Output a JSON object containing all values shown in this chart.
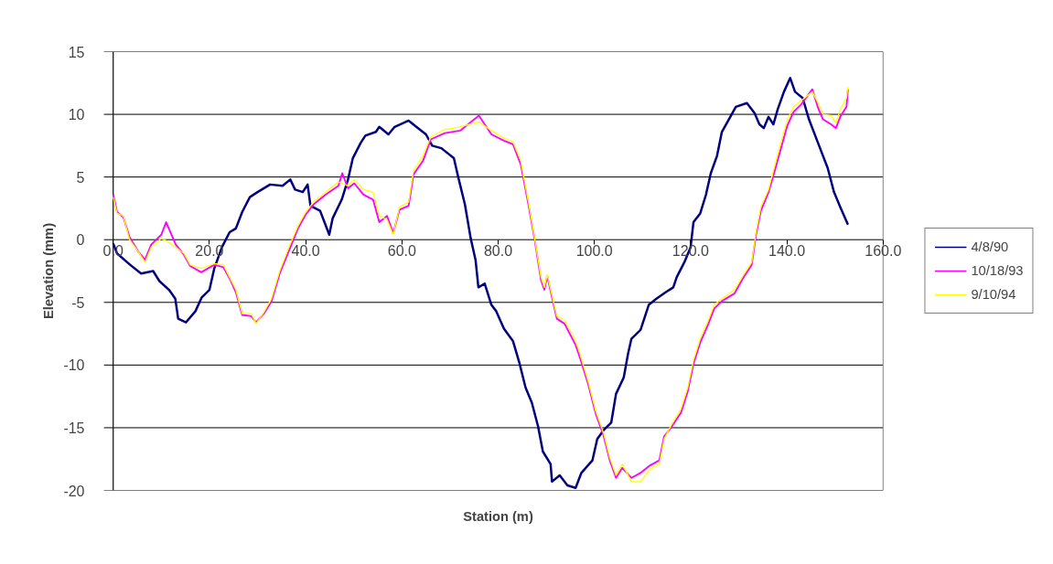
{
  "chart_data": {
    "type": "line",
    "xlabel": "Station (m)",
    "ylabel": "Elevation (mm)",
    "xlim": [
      0,
      160
    ],
    "ylim": [
      -20,
      15
    ],
    "xticks": [
      {
        "value": 0,
        "label": "0.0"
      },
      {
        "value": 20,
        "label": "20.0"
      },
      {
        "value": 40,
        "label": "40.0"
      },
      {
        "value": 60,
        "label": "60.0"
      },
      {
        "value": 80,
        "label": "80.0"
      },
      {
        "value": 100,
        "label": "100.0"
      },
      {
        "value": 120,
        "label": "120.0"
      },
      {
        "value": 140,
        "label": "140.0"
      },
      {
        "value": 160,
        "label": "160.0"
      }
    ],
    "yticks": [
      -20,
      -15,
      -10,
      -5,
      0,
      5,
      10,
      15
    ],
    "grid": "y",
    "legend": "right",
    "marker": "none",
    "line_style": "solid",
    "series": [
      {
        "name": "4/8/90",
        "color": "#000080",
        "x": [
          0,
          0.8,
          3.5,
          5.8,
          8.3,
          9.6,
          11.6,
          12.9,
          13.5,
          15.1,
          17.1,
          18.4,
          20.0,
          21.0,
          22.6,
          24.2,
          25.5,
          26.8,
          28.4,
          30.0,
          32.6,
          35.2,
          36.8,
          37.8,
          39.4,
          40.4,
          41.0,
          43.0,
          43.9,
          44.9,
          45.6,
          47.5,
          48.8,
          49.8,
          51.4,
          52.4,
          54.6,
          55.3,
          57.2,
          58.5,
          61.4,
          63.0,
          65.0,
          66.3,
          68.2,
          70.8,
          71.7,
          73.1,
          74.3,
          75.3,
          75.9,
          77.2,
          78.6,
          79.6,
          81.2,
          83.1,
          84.4,
          85.7,
          87.0,
          88.3,
          89.3,
          90.9,
          91.2,
          92.8,
          94.4,
          96.1,
          97.3,
          99.6,
          100.6,
          101.9,
          103.5,
          104.5,
          106.1,
          107.0,
          107.7,
          109.6,
          111.3,
          112.9,
          114.8,
          116.4,
          117.1,
          118.7,
          120.0,
          120.6,
          122.0,
          123.2,
          124.2,
          125.5,
          126.5,
          128.4,
          129.4,
          131.7,
          133.3,
          134.3,
          135.2,
          136.2,
          137.2,
          138.1,
          139.4,
          140.7,
          141.7,
          143.3,
          144.6,
          146.5,
          148.5,
          149.8,
          151.1,
          152.7
        ],
        "values": [
          -0.3,
          -1.1,
          -2.0,
          -2.7,
          -2.5,
          -3.3,
          -4.0,
          -4.7,
          -6.3,
          -6.6,
          -5.7,
          -4.6,
          -4.0,
          -2.3,
          -0.6,
          0.6,
          0.9,
          2.2,
          3.4,
          3.8,
          4.4,
          4.3,
          4.8,
          4.0,
          3.8,
          4.4,
          2.7,
          2.3,
          1.4,
          0.4,
          1.7,
          3.2,
          4.8,
          6.5,
          7.7,
          8.3,
          8.6,
          9.0,
          8.4,
          9.0,
          9.5,
          9.0,
          8.4,
          7.5,
          7.3,
          6.5,
          5.0,
          2.8,
          0.1,
          -1.6,
          -3.8,
          -3.5,
          -5.2,
          -5.7,
          -7.1,
          -8.1,
          -9.8,
          -11.8,
          -13.0,
          -14.9,
          -16.9,
          -17.9,
          -19.3,
          -18.8,
          -19.6,
          -19.8,
          -18.6,
          -17.6,
          -15.9,
          -15.2,
          -14.6,
          -12.3,
          -11.0,
          -9.1,
          -7.9,
          -7.2,
          -5.2,
          -4.7,
          -4.2,
          -3.8,
          -3.0,
          -1.8,
          -0.6,
          1.4,
          2.1,
          3.6,
          5.3,
          6.7,
          8.6,
          9.9,
          10.6,
          10.9,
          10.1,
          9.2,
          8.9,
          9.8,
          9.2,
          10.4,
          11.8,
          12.9,
          11.8,
          11.3,
          9.6,
          7.7,
          5.7,
          3.8,
          2.6,
          1.2
        ]
      },
      {
        "name": "10/18/93",
        "color": "#ff00ff",
        "x": [
          0,
          0.8,
          2.1,
          3.4,
          5.3,
          6.6,
          7.9,
          10.0,
          11.0,
          13.0,
          14.7,
          16.0,
          18.3,
          21.0,
          22.9,
          24.2,
          25.5,
          26.8,
          28.7,
          29.7,
          31.3,
          32.9,
          34.6,
          36.5,
          38.4,
          40.0,
          41.6,
          44.2,
          46.8,
          47.6,
          48.8,
          50.1,
          52.0,
          54.0,
          55.3,
          56.9,
          58.2,
          59.5,
          61.4,
          62.4,
          64.4,
          66.0,
          68.9,
          72.1,
          76.0,
          78.6,
          81.2,
          83.1,
          84.7,
          86.3,
          87.6,
          88.9,
          89.6,
          90.2,
          92.2,
          93.8,
          96.1,
          97.0,
          98.7,
          100.3,
          101.9,
          103.2,
          104.5,
          105.8,
          107.7,
          109.6,
          111.6,
          113.5,
          114.5,
          116.1,
          118.0,
          119.4,
          120.6,
          122.0,
          123.6,
          124.9,
          126.5,
          129.1,
          131.0,
          132.7,
          133.6,
          134.6,
          136.2,
          137.2,
          138.5,
          140.1,
          141.4,
          143.0,
          145.3,
          146.5,
          147.5,
          149.2,
          150.2,
          151.1,
          152.4,
          152.7
        ],
        "values": [
          3.6,
          2.2,
          1.8,
          0.2,
          -1.0,
          -1.6,
          -0.4,
          0.4,
          1.4,
          -0.4,
          -1.2,
          -2.1,
          -2.6,
          -2.0,
          -2.2,
          -3.1,
          -4.2,
          -6.0,
          -6.1,
          -6.6,
          -5.9,
          -4.9,
          -2.7,
          -0.9,
          0.9,
          2.0,
          2.8,
          3.6,
          4.3,
          5.3,
          4.1,
          4.5,
          3.6,
          3.2,
          1.4,
          1.9,
          0.5,
          2.4,
          2.7,
          5.2,
          6.3,
          8.0,
          8.5,
          8.7,
          9.9,
          8.4,
          7.9,
          7.6,
          6.0,
          2.8,
          0.0,
          -3.2,
          -4.0,
          -2.9,
          -6.3,
          -6.7,
          -8.4,
          -9.4,
          -11.5,
          -13.9,
          -15.6,
          -17.6,
          -19.0,
          -18.2,
          -19.0,
          -18.6,
          -18.0,
          -17.6,
          -15.7,
          -14.9,
          -13.8,
          -12.1,
          -9.9,
          -8.2,
          -6.8,
          -5.5,
          -4.9,
          -4.3,
          -3.0,
          -2.0,
          0.4,
          2.3,
          3.8,
          5.1,
          6.9,
          9.1,
          10.2,
          10.8,
          12.0,
          10.5,
          9.6,
          9.2,
          8.9,
          9.8,
          10.6,
          12.0
        ]
      },
      {
        "name": "9/10/94",
        "color": "#ffff00",
        "x": [
          0,
          0.8,
          2.1,
          3.4,
          5.3,
          6.6,
          7.9,
          10.0,
          11.1,
          13.0,
          14.7,
          16.0,
          18.3,
          21.0,
          22.9,
          24.2,
          25.5,
          26.8,
          28.7,
          29.7,
          31.3,
          32.9,
          34.6,
          36.5,
          38.4,
          40.0,
          41.6,
          44.2,
          46.8,
          48.8,
          50.1,
          52.0,
          54.0,
          55.3,
          56.9,
          58.2,
          59.5,
          61.4,
          62.4,
          64.4,
          66.0,
          68.9,
          72.1,
          76.0,
          78.6,
          81.2,
          83.1,
          84.7,
          86.3,
          87.6,
          88.9,
          89.6,
          90.2,
          92.2,
          93.8,
          96.1,
          97.0,
          98.7,
          100.3,
          101.9,
          103.2,
          104.5,
          105.8,
          107.7,
          109.6,
          111.6,
          113.5,
          114.5,
          116.1,
          118.0,
          119.4,
          120.6,
          122.0,
          123.6,
          124.9,
          126.5,
          129.1,
          131.0,
          132.7,
          133.6,
          134.6,
          136.2,
          137.2,
          138.5,
          140.1,
          141.4,
          143.0,
          145.3,
          146.5,
          147.5,
          149.2,
          150.2,
          151.1,
          152.4,
          152.7
        ],
        "values": [
          3.4,
          2.1,
          1.9,
          0.0,
          -1.0,
          -1.8,
          -0.6,
          0.1,
          -0.1,
          -0.6,
          -1.1,
          -2.0,
          -2.3,
          -1.9,
          -2.0,
          -3.0,
          -4.0,
          -5.9,
          -5.9,
          -6.7,
          -5.8,
          -4.7,
          -2.5,
          -0.6,
          1.1,
          2.2,
          3.0,
          3.8,
          4.6,
          4.3,
          4.8,
          4.0,
          3.8,
          1.9,
          1.6,
          0.4,
          2.6,
          3.0,
          5.5,
          6.7,
          8.2,
          8.8,
          9.0,
          9.4,
          8.7,
          8.1,
          7.8,
          6.3,
          3.0,
          0.1,
          -3.0,
          -3.8,
          -2.8,
          -6.1,
          -6.4,
          -8.1,
          -9.1,
          -11.3,
          -13.7,
          -15.4,
          -17.4,
          -18.8,
          -17.9,
          -19.3,
          -19.3,
          -18.3,
          -17.9,
          -15.9,
          -14.7,
          -13.5,
          -11.8,
          -9.6,
          -7.9,
          -6.5,
          -5.2,
          -4.7,
          -4.0,
          -2.8,
          -1.8,
          0.6,
          2.6,
          4.0,
          5.5,
          7.4,
          9.6,
          10.6,
          11.1,
          11.8,
          10.9,
          10.0,
          9.9,
          9.3,
          10.4,
          11.3,
          12.2
        ]
      }
    ]
  }
}
